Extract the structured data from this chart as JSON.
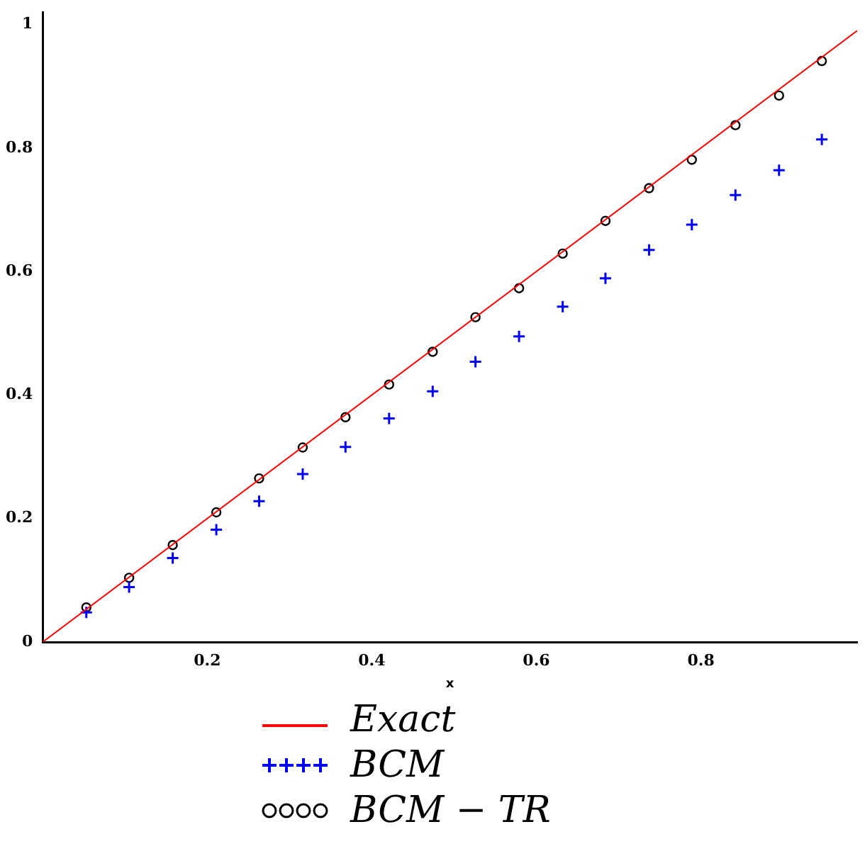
{
  "chart_data": {
    "type": "scatter",
    "xlabel": "x",
    "xlim": [
      0,
      0.99
    ],
    "ylim": [
      0,
      1.02
    ],
    "xticks": [
      0.2,
      0.4,
      0.6,
      0.8
    ],
    "yticks": [
      0,
      0.2,
      0.4,
      0.6,
      0.8,
      1
    ],
    "grid": false,
    "legend": "bottom",
    "series": [
      {
        "name": "Exact",
        "type": "line",
        "color": "#ff0000",
        "marker": "none",
        "x": [
          0,
          0.99
        ],
        "values": [
          0,
          0.99
        ]
      },
      {
        "name": "BCM",
        "color": "#0000ff",
        "marker": "cross",
        "x": [
          0.053,
          0.105,
          0.158,
          0.211,
          0.263,
          0.316,
          0.368,
          0.421,
          0.474,
          0.526,
          0.579,
          0.632,
          0.684,
          0.737,
          0.789,
          0.842,
          0.895,
          0.947
        ],
        "values": [
          0.048,
          0.089,
          0.136,
          0.182,
          0.228,
          0.272,
          0.316,
          0.362,
          0.406,
          0.454,
          0.495,
          0.543,
          0.589,
          0.635,
          0.676,
          0.724,
          0.764,
          0.814
        ]
      },
      {
        "name": "BCM − TR",
        "color": "#000000",
        "marker": "circle",
        "x": [
          0.053,
          0.105,
          0.158,
          0.211,
          0.263,
          0.316,
          0.368,
          0.421,
          0.474,
          0.526,
          0.579,
          0.632,
          0.684,
          0.737,
          0.789,
          0.842,
          0.895,
          0.947
        ],
        "values": [
          0.056,
          0.104,
          0.157,
          0.21,
          0.265,
          0.315,
          0.364,
          0.417,
          0.47,
          0.526,
          0.573,
          0.629,
          0.682,
          0.735,
          0.781,
          0.837,
          0.885,
          0.941
        ]
      }
    ]
  }
}
